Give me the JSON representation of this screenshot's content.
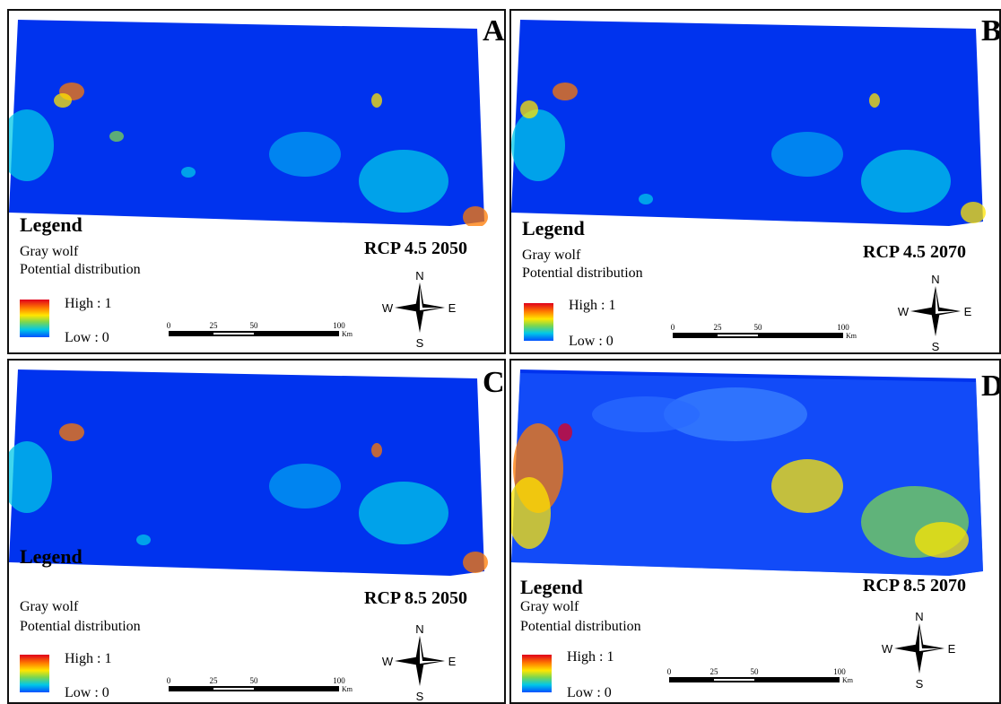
{
  "panels": [
    {
      "letter": "A",
      "legend_title": "Legend",
      "species": "Gray wolf",
      "layer": "Potential distribution",
      "high_label": "High : 1",
      "low_label": "Low : 0",
      "scenario": "RCP 4.5 2050"
    },
    {
      "letter": "B",
      "legend_title": "Legend",
      "species": "Gray wolf",
      "layer": "Potential distribution",
      "high_label": "High : 1",
      "low_label": "Low : 0",
      "scenario": "RCP 4.5 2070"
    },
    {
      "letter": "C",
      "legend_title": "Legend",
      "species": "Gray wolf",
      "layer": "Potential distribution",
      "high_label": "High : 1",
      "low_label": "Low : 0",
      "scenario": "RCP 8.5 2050"
    },
    {
      "letter": "D",
      "legend_title": "Legend",
      "species": "Gray wolf",
      "layer": "Potential distribution",
      "high_label": "High : 1",
      "low_label": "Low : 0",
      "scenario": "RCP 8.5 2070"
    }
  ],
  "scale_bar": {
    "ticks": [
      "0",
      "25",
      "50",
      "100"
    ],
    "unit": "Km"
  },
  "compass": {
    "north": "N",
    "south": "S",
    "east": "E",
    "west": "W"
  },
  "colors": {
    "low": "#0050ff",
    "mid": "#ffe600",
    "high": "#e0001b"
  }
}
